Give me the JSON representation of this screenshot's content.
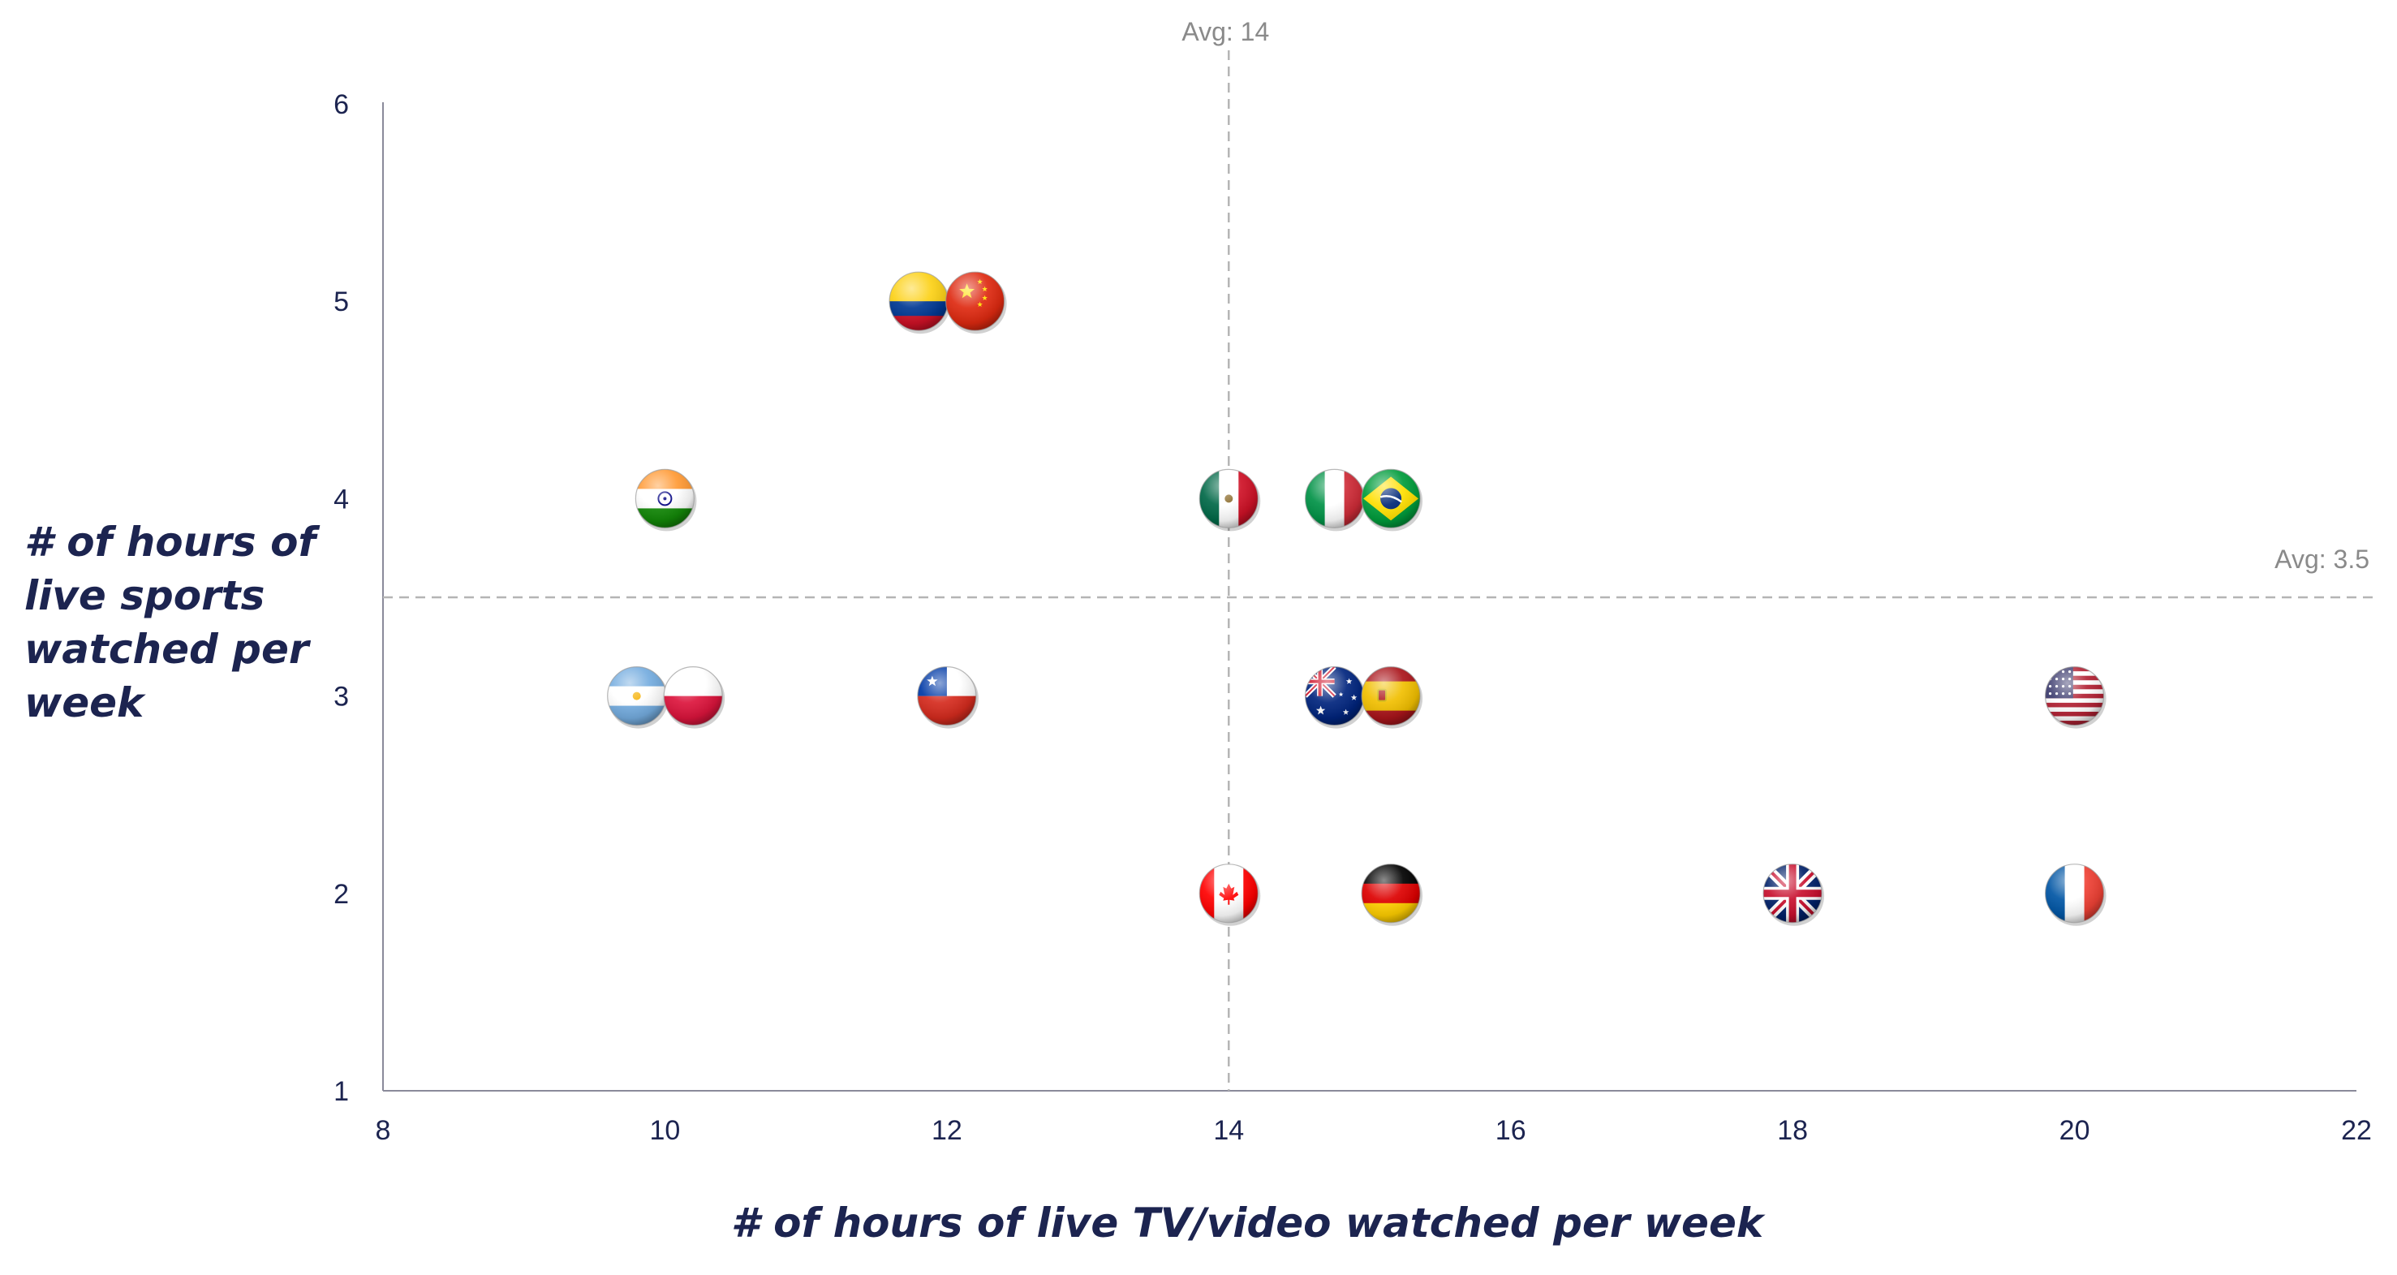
{
  "chart_data": {
    "type": "scatter",
    "title": "",
    "xlabel": "# of hours of live TV/video watched per week",
    "ylabel": "# of hours of live sports watched per week",
    "xlim": [
      8,
      22
    ],
    "ylim": [
      1,
      6
    ],
    "xticks": [
      "8",
      "10",
      "12",
      "14",
      "16",
      "18",
      "20",
      "22"
    ],
    "yticks": [
      "1",
      "2",
      "3",
      "4",
      "5",
      "6"
    ],
    "grid": false,
    "reference_lines": [
      {
        "axis": "x",
        "value": 14,
        "label": "Avg: 14"
      },
      {
        "axis": "y",
        "value": 3.5,
        "label": "Avg: 3.5"
      }
    ],
    "points": [
      {
        "country": "Colombia",
        "icon": "colombia-flag-icon",
        "x": 11.8,
        "y": 5
      },
      {
        "country": "China",
        "icon": "china-flag-icon",
        "x": 12.2,
        "y": 5
      },
      {
        "country": "India",
        "icon": "india-flag-icon",
        "x": 10,
        "y": 4
      },
      {
        "country": "Mexico",
        "icon": "mexico-flag-icon",
        "x": 14,
        "y": 4
      },
      {
        "country": "Italy",
        "icon": "italy-flag-icon",
        "x": 14.75,
        "y": 4
      },
      {
        "country": "Brazil",
        "icon": "brazil-flag-icon",
        "x": 15.15,
        "y": 4
      },
      {
        "country": "Argentina",
        "icon": "argentina-flag-icon",
        "x": 9.8,
        "y": 3
      },
      {
        "country": "Poland",
        "icon": "poland-flag-icon",
        "x": 10.2,
        "y": 3
      },
      {
        "country": "Chile",
        "icon": "chile-flag-icon",
        "x": 12,
        "y": 3
      },
      {
        "country": "Australia",
        "icon": "australia-flag-icon",
        "x": 14.75,
        "y": 3
      },
      {
        "country": "Spain",
        "icon": "spain-flag-icon",
        "x": 15.15,
        "y": 3
      },
      {
        "country": "United States",
        "icon": "usa-flag-icon",
        "x": 20,
        "y": 3
      },
      {
        "country": "Canada",
        "icon": "canada-flag-icon",
        "x": 14,
        "y": 2
      },
      {
        "country": "Germany",
        "icon": "germany-flag-icon",
        "x": 15.15,
        "y": 2
      },
      {
        "country": "United Kingdom",
        "icon": "uk-flag-icon",
        "x": 18,
        "y": 2
      },
      {
        "country": "France",
        "icon": "france-flag-icon",
        "x": 20,
        "y": 2
      }
    ]
  }
}
